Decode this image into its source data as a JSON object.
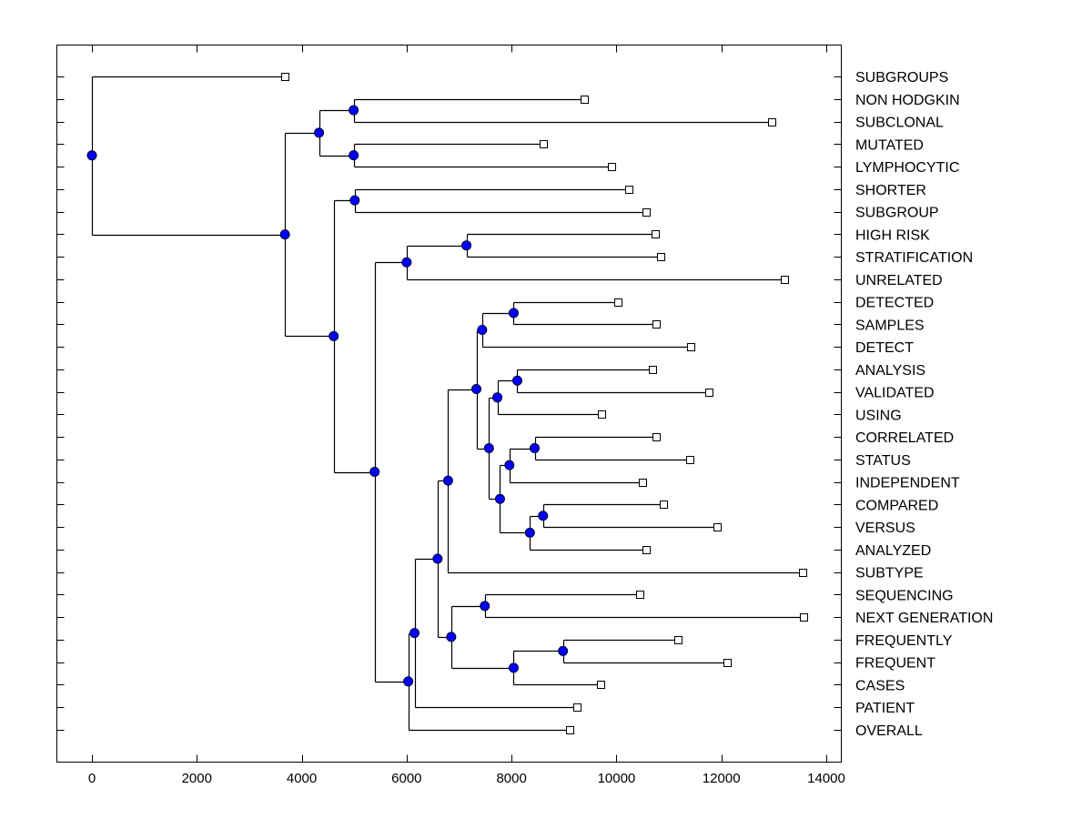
{
  "chart_data": {
    "type": "dendrogram",
    "title": "",
    "xlabel": "",
    "ylabel": "",
    "xlim": [
      -650,
      14300
    ],
    "xticks": [
      0,
      2000,
      4000,
      6000,
      8000,
      10000,
      12000,
      14000
    ],
    "xtick_labels": [
      "0",
      "2000",
      "4000",
      "6000",
      "8000",
      "10000",
      "12000",
      "14000"
    ],
    "grid": false,
    "legend": "none",
    "colors": {
      "node_fill": "#0000ff",
      "node_stroke": "#000033",
      "leaf_fill": "#ffffff",
      "line": "#000000"
    },
    "leaves": [
      {
        "id": "SUBGROUPS",
        "label": "SUBGROUPS",
        "value": 3680
      },
      {
        "id": "NON HODGKIN",
        "label": "NON HODGKIN",
        "value": 9380
      },
      {
        "id": "SUBCLONAL",
        "label": "SUBCLONAL",
        "value": 12960
      },
      {
        "id": "MUTATED",
        "label": "MUTATED",
        "value": 8600
      },
      {
        "id": "LYMPHOCYTIC",
        "label": "LYMPHOCYTIC",
        "value": 9910
      },
      {
        "id": "SHORTER",
        "label": "SHORTER",
        "value": 10240
      },
      {
        "id": "SUBGROUP",
        "label": "SUBGROUP",
        "value": 10560
      },
      {
        "id": "HIGH RISK",
        "label": "HIGH RISK",
        "value": 10730
      },
      {
        "id": "STRATIFICATION",
        "label": "STRATIFICATION",
        "value": 10850
      },
      {
        "id": "UNRELATED",
        "label": "UNRELATED",
        "value": 13210
      },
      {
        "id": "DETECTED",
        "label": "DETECTED",
        "value": 10020
      },
      {
        "id": "SAMPLES",
        "label": "SAMPLES",
        "value": 10750
      },
      {
        "id": "DETECT",
        "label": "DETECT",
        "value": 11420
      },
      {
        "id": "ANALYSIS",
        "label": "ANALYSIS",
        "value": 10690
      },
      {
        "id": "VALIDATED",
        "label": "VALIDATED",
        "value": 11770
      },
      {
        "id": "USING",
        "label": "USING",
        "value": 9720
      },
      {
        "id": "CORRELATED",
        "label": "CORRELATED",
        "value": 10760
      },
      {
        "id": "STATUS",
        "label": "STATUS",
        "value": 11400
      },
      {
        "id": "INDEPENDENT",
        "label": "INDEPENDENT",
        "value": 10500
      },
      {
        "id": "COMPARED",
        "label": "COMPARED",
        "value": 10900
      },
      {
        "id": "VERSUS",
        "label": "VERSUS",
        "value": 11910
      },
      {
        "id": "ANALYZED",
        "label": "ANALYZED",
        "value": 10570
      },
      {
        "id": "SUBTYPE",
        "label": "SUBTYPE",
        "value": 13550
      },
      {
        "id": "SEQUENCING",
        "label": "SEQUENCING",
        "value": 10450
      },
      {
        "id": "NEXT GENERATION",
        "label": "NEXT GENERATION",
        "value": 13570
      },
      {
        "id": "FREQUENTLY",
        "label": "FREQUENTLY",
        "value": 11180
      },
      {
        "id": "FREQUENT",
        "label": "FREQUENT",
        "value": 12110
      },
      {
        "id": "CASES",
        "label": "CASES",
        "value": 9690
      },
      {
        "id": "PATIENT",
        "label": "PATIENT",
        "value": 9240
      },
      {
        "id": "OVERALL",
        "label": "OVERALL",
        "value": 9100
      }
    ],
    "merges": [
      {
        "id": "n1",
        "value": 4990,
        "children": [
          "NON HODGKIN",
          "SUBCLONAL"
        ]
      },
      {
        "id": "n2",
        "value": 4990,
        "children": [
          "MUTATED",
          "LYMPHOCYTIC"
        ]
      },
      {
        "id": "n3",
        "value": 4330,
        "children": [
          "n1",
          "n2"
        ]
      },
      {
        "id": "n4",
        "value": 5010,
        "children": [
          "SHORTER",
          "SUBGROUP"
        ]
      },
      {
        "id": "n5",
        "value": 7140,
        "children": [
          "HIGH RISK",
          "STRATIFICATION"
        ]
      },
      {
        "id": "n6",
        "value": 6000,
        "children": [
          "n5",
          "UNRELATED"
        ]
      },
      {
        "id": "n7",
        "value": 8040,
        "children": [
          "DETECTED",
          "SAMPLES"
        ]
      },
      {
        "id": "n8",
        "value": 7440,
        "children": [
          "n7",
          "DETECT"
        ]
      },
      {
        "id": "n9",
        "value": 8110,
        "children": [
          "ANALYSIS",
          "VALIDATED"
        ]
      },
      {
        "id": "n10",
        "value": 7730,
        "children": [
          "n9",
          "USING"
        ]
      },
      {
        "id": "n11",
        "value": 8440,
        "children": [
          "CORRELATED",
          "STATUS"
        ]
      },
      {
        "id": "n12",
        "value": 7960,
        "children": [
          "n11",
          "INDEPENDENT"
        ]
      },
      {
        "id": "n13",
        "value": 8600,
        "children": [
          "COMPARED",
          "VERSUS"
        ]
      },
      {
        "id": "n14",
        "value": 8350,
        "children": [
          "n13",
          "ANALYZED"
        ]
      },
      {
        "id": "n15",
        "value": 7780,
        "children": [
          "n12",
          "n14"
        ]
      },
      {
        "id": "n16",
        "value": 7570,
        "children": [
          "n10",
          "n15"
        ]
      },
      {
        "id": "n17",
        "value": 7330,
        "children": [
          "n8",
          "n16"
        ]
      },
      {
        "id": "n18",
        "value": 6790,
        "children": [
          "n17",
          "SUBTYPE"
        ]
      },
      {
        "id": "n19",
        "value": 7490,
        "children": [
          "SEQUENCING",
          "NEXT GENERATION"
        ]
      },
      {
        "id": "n20",
        "value": 8980,
        "children": [
          "FREQUENTLY",
          "FREQUENT"
        ]
      },
      {
        "id": "n21",
        "value": 8040,
        "children": [
          "n20",
          "CASES"
        ]
      },
      {
        "id": "n22",
        "value": 6850,
        "children": [
          "n19",
          "n21"
        ]
      },
      {
        "id": "n23",
        "value": 6590,
        "children": [
          "n18",
          "n22"
        ]
      },
      {
        "id": "n24",
        "value": 6150,
        "children": [
          "n23",
          "PATIENT"
        ]
      },
      {
        "id": "n25",
        "value": 6030,
        "children": [
          "n24",
          "OVERALL"
        ]
      },
      {
        "id": "n26",
        "value": 5390,
        "children": [
          "n6",
          "n25"
        ]
      },
      {
        "id": "n27",
        "value": 4610,
        "children": [
          "n4",
          "n26"
        ]
      },
      {
        "id": "n28",
        "value": 3680,
        "children": [
          "n3",
          "n27"
        ]
      },
      {
        "id": "n29",
        "value": 0,
        "children": [
          "SUBGROUPS",
          "n28"
        ]
      }
    ]
  }
}
